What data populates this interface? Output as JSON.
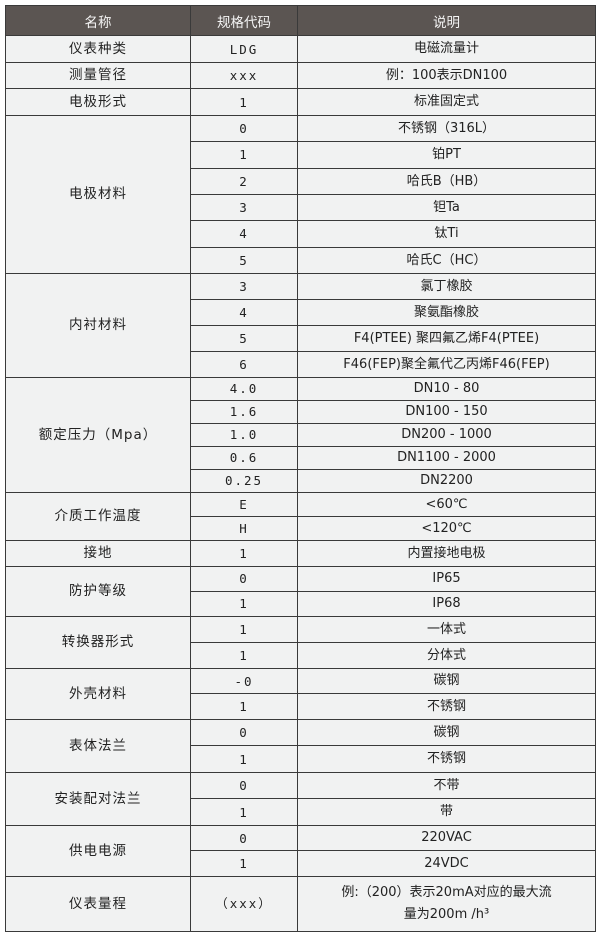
{
  "header": {
    "name": "名称",
    "code": "规格代码",
    "desc": "说明"
  },
  "groups": [
    {
      "name": "仪表种类",
      "rows": [
        {
          "code": "LDG",
          "desc": "电磁流量计"
        }
      ]
    },
    {
      "name": "测量管径",
      "rows": [
        {
          "code": "xxx",
          "desc": "例：100表示DN100"
        }
      ]
    },
    {
      "name": "电极形式",
      "rows": [
        {
          "code": "1",
          "desc": "标准固定式"
        }
      ]
    },
    {
      "name": "电极材料",
      "rows": [
        {
          "code": "0",
          "desc": "不锈钢（316L）"
        },
        {
          "code": "1",
          "desc": "铂PT"
        },
        {
          "code": "2",
          "desc": "哈氏B（HB）"
        },
        {
          "code": "3",
          "desc": "钽Ta"
        },
        {
          "code": "4",
          "desc": "钛Ti"
        },
        {
          "code": "5",
          "desc": "哈氏C（HC）"
        }
      ]
    },
    {
      "name": "内衬材料",
      "rows": [
        {
          "code": "3",
          "desc": "氯丁橡胶"
        },
        {
          "code": "4",
          "desc": "聚氨酯橡胶"
        },
        {
          "code": "5",
          "desc": "F4(PTEE) 聚四氟乙烯F4(PTEE)"
        },
        {
          "code": "6",
          "desc": "F46(FEP)聚全氟代乙丙烯F46(FEP)"
        }
      ]
    },
    {
      "name": "额定压力（Mpa）",
      "rows": [
        {
          "code": "4.0",
          "desc": "DN10 - 80"
        },
        {
          "code": "1.6",
          "desc": "DN100 - 150"
        },
        {
          "code": "1.0",
          "desc": "DN200 - 1000"
        },
        {
          "code": "0.6",
          "desc": "DN1100 - 2000"
        },
        {
          "code": "0.25",
          "desc": "DN2200"
        }
      ]
    },
    {
      "name": "介质工作温度",
      "rows": [
        {
          "code": "E",
          "desc": "<60℃"
        },
        {
          "code": "H",
          "desc": "<120℃"
        }
      ]
    },
    {
      "name": "接地",
      "rows": [
        {
          "code": "1",
          "desc": "内置接地电极"
        }
      ]
    },
    {
      "name": "防护等级",
      "rows": [
        {
          "code": "0",
          "desc": "IP65"
        },
        {
          "code": "1",
          "desc": "IP68"
        }
      ]
    },
    {
      "name": "转换器形式",
      "rows": [
        {
          "code": "1",
          "desc": "一体式"
        },
        {
          "code": "1",
          "desc": "分体式"
        }
      ]
    },
    {
      "name": "外壳材料",
      "rows": [
        {
          "code": "-0",
          "desc": "碳钢"
        },
        {
          "code": "1",
          "desc": "不锈钢"
        }
      ]
    },
    {
      "name": "表体法兰",
      "rows": [
        {
          "code": "0",
          "desc": "碳钢"
        },
        {
          "code": "1",
          "desc": "不锈钢"
        }
      ]
    },
    {
      "name": "安装配对法兰",
      "rows": [
        {
          "code": "0",
          "desc": "不带"
        },
        {
          "code": "1",
          "desc": "带"
        }
      ]
    },
    {
      "name": "供电电源",
      "rows": [
        {
          "code": "0",
          "desc": "220VAC"
        },
        {
          "code": "1",
          "desc": "24VDC"
        }
      ]
    },
    {
      "name": "仪表量程",
      "rows": [
        {
          "code": "（xxx）",
          "desc": "例:（200）表示20mA对应的最大流量为200m /h³"
        }
      ]
    }
  ]
}
